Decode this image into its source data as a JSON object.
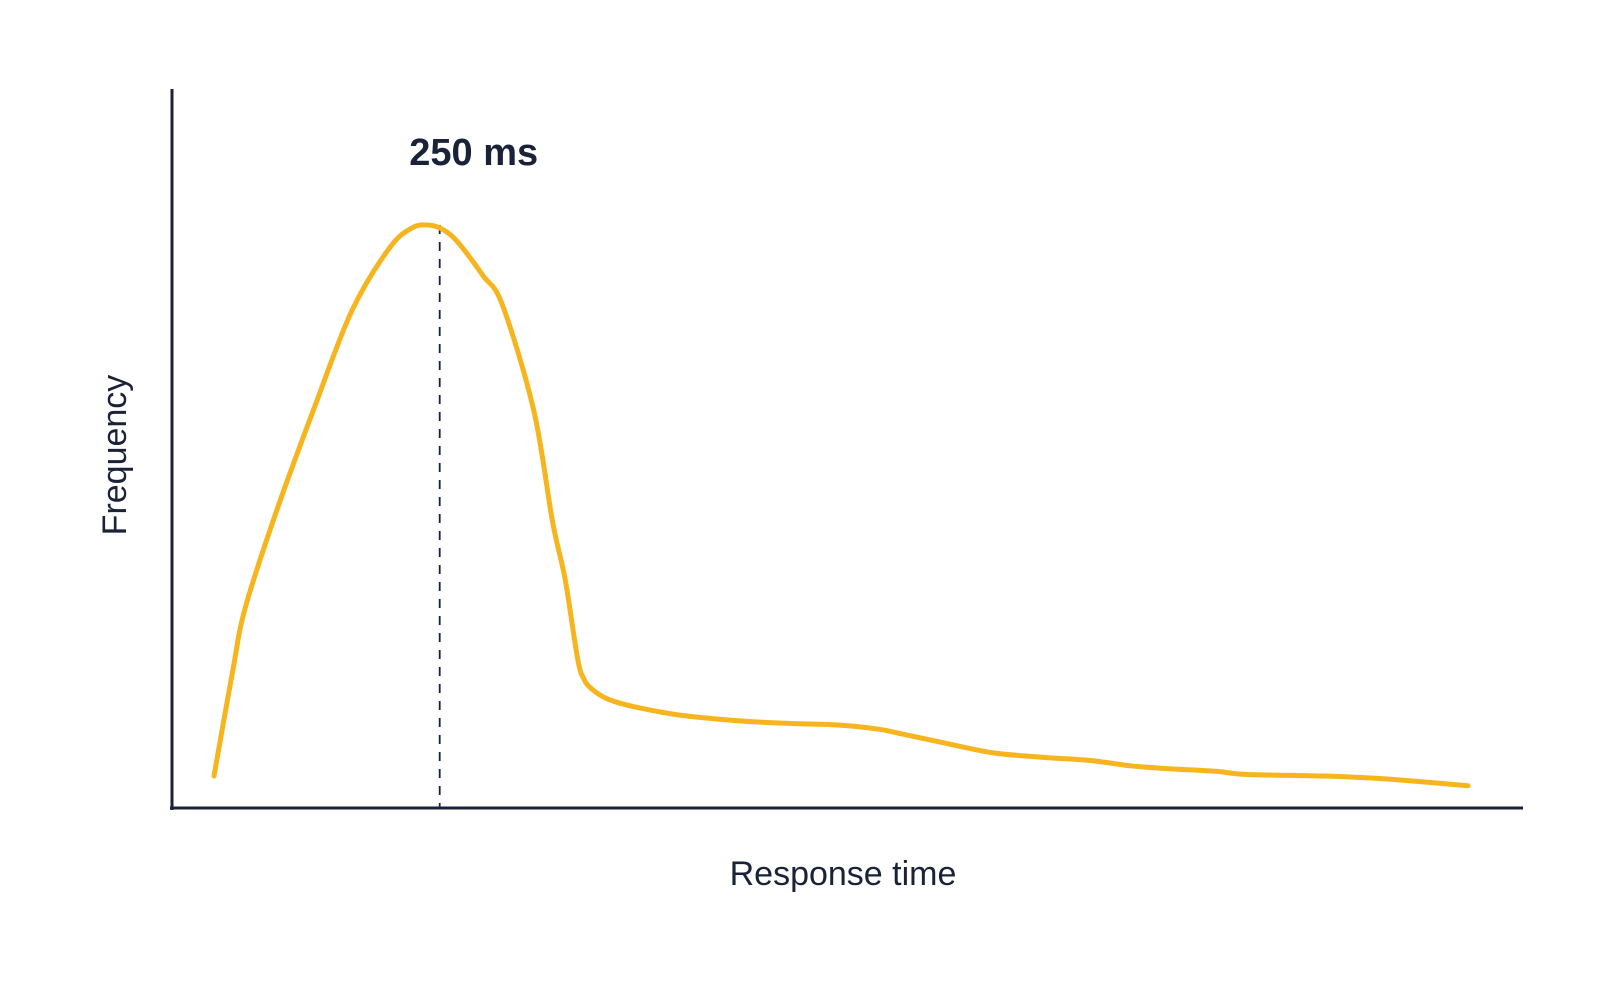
{
  "chart_data": {
    "type": "line",
    "title": "",
    "xlabel": "Response time",
    "ylabel": "Frequency",
    "grid": false,
    "legend": "none",
    "xlim": [
      0,
      1000
    ],
    "ylim": [
      0,
      100
    ],
    "line_color": "#f6b51e",
    "axis_color": "#1a2238",
    "annotation": {
      "text": "250 ms",
      "x": 180,
      "y": 100
    },
    "series": [
      {
        "x": [
          0,
          15,
          25,
          50,
          80,
          110,
          140,
          158,
          170,
          180,
          190,
          200,
          215,
          230,
          255,
          270,
          280,
          290,
          295,
          300,
          310,
          320,
          340,
          370,
          400,
          430,
          460,
          500,
          530,
          550,
          580,
          620,
          660,
          700,
          730,
          760,
          800,
          820,
          860,
          900,
          940,
          1000
        ],
        "y": [
          3.5,
          22,
          33,
          50,
          68,
          85,
          96,
          99.5,
          100,
          99.5,
          98,
          95.5,
          91,
          86,
          67.5,
          48,
          38,
          24,
          20.5,
          19,
          17.4,
          16.5,
          15.4,
          14.2,
          13.5,
          13.0,
          12.7,
          12.4,
          11.7,
          10.8,
          9.4,
          7.6,
          6.8,
          6.2,
          5.3,
          4.8,
          4.3,
          3.8,
          3.6,
          3.4,
          2.9,
          1.8
        ]
      }
    ]
  }
}
